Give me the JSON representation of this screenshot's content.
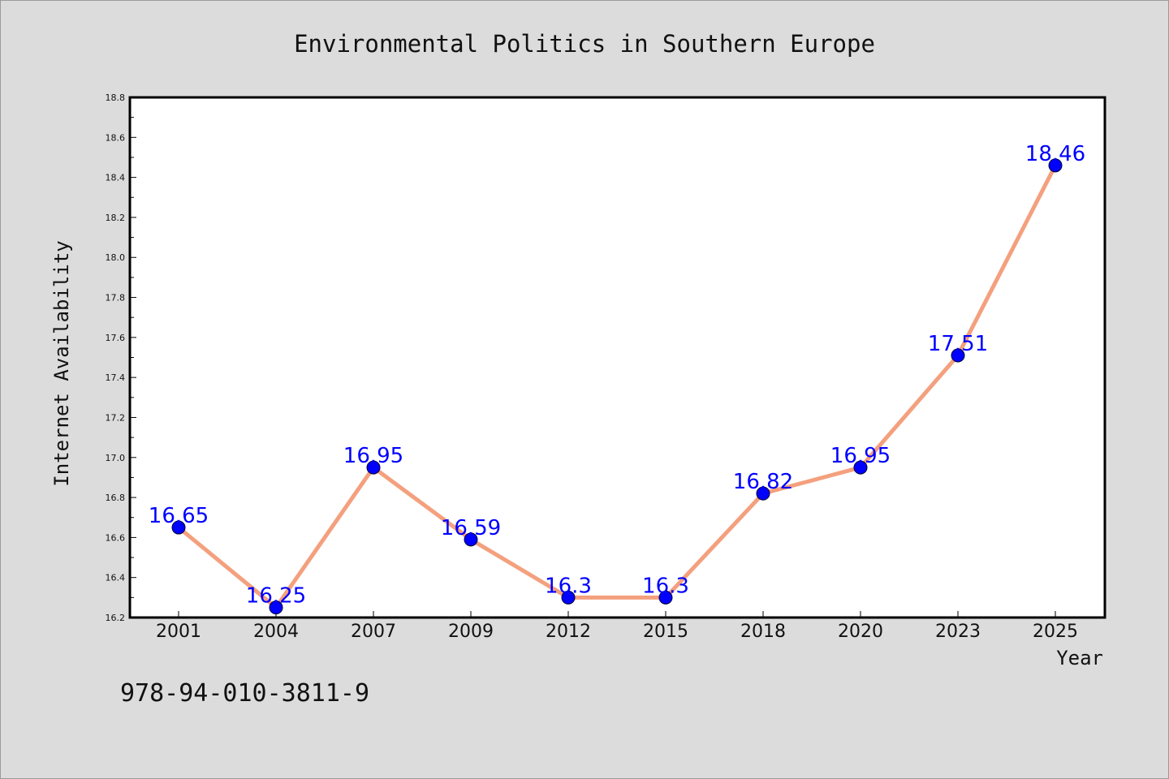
{
  "chart_data": {
    "type": "line",
    "title": "Environmental Politics in Southern Europe",
    "xlabel": "Year",
    "ylabel": "Internet Availability",
    "categories": [
      "2001",
      "2004",
      "2007",
      "2009",
      "2012",
      "2015",
      "2018",
      "2020",
      "2023",
      "2025"
    ],
    "series": [
      {
        "values": [
          16.65,
          16.25,
          16.95,
          16.59,
          16.3,
          16.3,
          16.82,
          16.95,
          17.51,
          18.46
        ],
        "data_labels": [
          "16.65",
          "16.25",
          "16.95",
          "16.59",
          "16.3",
          "16.3",
          "16.82",
          "16.95",
          "17.51",
          "18.46"
        ],
        "line_color": "#f4a07e",
        "marker_color": "#0000ff"
      }
    ],
    "ylim": [
      16.2,
      18.8
    ],
    "yticks": [
      "16.2",
      "16.4",
      "16.6",
      "16.8",
      "17.0",
      "17.2",
      "17.4",
      "17.6",
      "17.8",
      "18.0",
      "18.2",
      "18.4",
      "18.6",
      "18.8"
    ],
    "grid": false,
    "legend": "none"
  },
  "footer": {
    "isbn": "978-94-010-3811-9"
  },
  "colors": {
    "background": "#dcdcdc",
    "plot_background": "#ffffff",
    "line": "#f4a07e",
    "marker": "#0000ff",
    "data_label": "#0000ff"
  }
}
